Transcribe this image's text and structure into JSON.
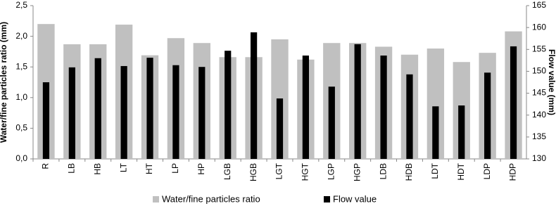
{
  "chart_data": {
    "type": "bar",
    "y_label": "Water/fine particles ratio (mm)",
    "y2_label": "Flow value (mm)",
    "categories": [
      "R",
      "LB",
      "HB",
      "LT",
      "HT",
      "LP",
      "HP",
      "LGB",
      "HGB",
      "LGT",
      "HGT",
      "LGP",
      "HGP",
      "LDB",
      "HDB",
      "LDT",
      "HDT",
      "LDP",
      "HDP"
    ],
    "series": [
      {
        "name": "Water/fine particles ratio",
        "color": "#c0c0c0",
        "axis": "y",
        "values": [
          2.2,
          1.87,
          1.87,
          2.19,
          1.69,
          1.97,
          1.89,
          1.66,
          1.66,
          1.95,
          1.62,
          1.89,
          1.89,
          1.83,
          1.7,
          1.8,
          1.58,
          1.73,
          2.08
        ]
      },
      {
        "name": "Flow value",
        "color": "#000000",
        "axis": "y2",
        "values": [
          147.5,
          150.9,
          153.0,
          151.2,
          153.1,
          151.4,
          151.0,
          154.7,
          158.9,
          143.8,
          153.6,
          146.5,
          156.2,
          153.6,
          149.3,
          142.0,
          142.2,
          149.7,
          155.7
        ]
      }
    ],
    "ylim": [
      0,
      2.5
    ],
    "yticks": [
      {
        "value": 0,
        "label": "0,0"
      },
      {
        "value": 0.5,
        "label": "0,5"
      },
      {
        "value": 1,
        "label": "1,0"
      },
      {
        "value": 1.5,
        "label": "1,5"
      },
      {
        "value": 2,
        "label": "2,0"
      },
      {
        "value": 2.5,
        "label": "2,5"
      }
    ],
    "y2lim": [
      130,
      165
    ],
    "y2ticks": [
      130,
      135,
      140,
      145,
      150,
      155,
      160,
      165
    ],
    "grid": false,
    "legend": "bottom"
  }
}
